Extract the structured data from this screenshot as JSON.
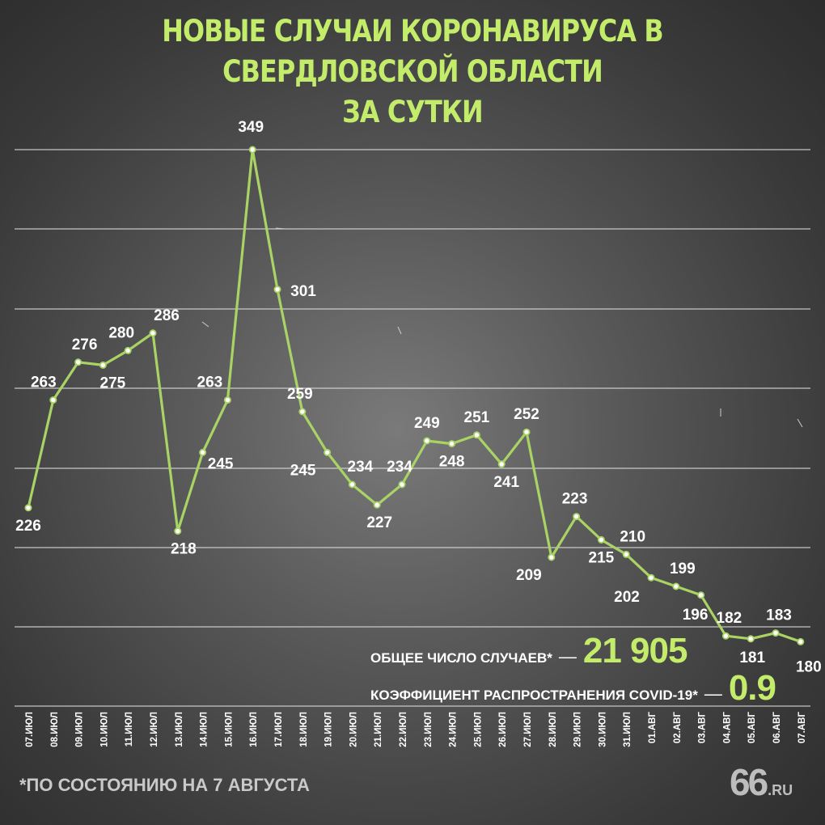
{
  "title": {
    "line1": "НОВЫЕ СЛУЧАИ КОРОНАВИРУСА В СВЕРДЛОВСКОЙ ОБЛАСТИ",
    "line2": "ЗА СУТКИ"
  },
  "stats": {
    "total_label": "ОБЩЕЕ ЧИСЛО СЛУЧАЕВ*",
    "total_value": "21 905",
    "r_label": "КОЭФФИЦИЕНТ РАСПРОСТРАНЕНИЯ COVID-19*",
    "r_value": "0.9",
    "dash": "—"
  },
  "footnote": "*ПО СОСТОЯНИЮ НА 7 АВГУСТА",
  "logo": {
    "number": "66",
    "suffix": ".RU"
  },
  "colors": {
    "accent": "#c2ec6a",
    "line": "#a9d465",
    "text": "#ffffff",
    "grid": "#dddddd"
  },
  "chart_data": {
    "type": "line",
    "title": "НОВЫЕ СЛУЧАИ КОРОНАВИРУСА В СВЕРДЛОВСКОЙ ОБЛАСТИ ЗА СУТКИ",
    "xlabel": "",
    "ylabel": "",
    "ylim": [
      0,
      349
    ],
    "grid": true,
    "categories": [
      "07.ИЮЛ",
      "08.ИЮЛ",
      "09.ИЮЛ",
      "10.ИЮЛ",
      "11.ИЮЛ",
      "12.ИЮЛ",
      "13.ИЮЛ",
      "14.ИЮЛ",
      "15.ИЮЛ",
      "16.ИЮЛ",
      "17.ИЮЛ",
      "18.ИЮЛ",
      "19.ИЮЛ",
      "20.ИЮЛ",
      "21.ИЮЛ",
      "22.ИЮЛ",
      "23.ИЮЛ",
      "24.ИЮЛ",
      "25.ИЮЛ",
      "26.ИЮЛ",
      "27.ИЮЛ",
      "28.ИЮЛ",
      "29.ИЮЛ",
      "30.ИЮЛ",
      "31.ИЮЛ",
      "01.АВГ",
      "02.АВГ",
      "03.АВГ",
      "04.АВГ",
      "05.АВГ",
      "06.АВГ",
      "07.АВГ"
    ],
    "values": [
      226,
      263,
      276,
      275,
      280,
      286,
      218,
      245,
      263,
      349,
      301,
      259,
      245,
      234,
      227,
      234,
      249,
      248,
      251,
      241,
      252,
      209,
      223,
      215,
      210,
      202,
      199,
      196,
      182,
      181,
      183,
      180
    ]
  }
}
